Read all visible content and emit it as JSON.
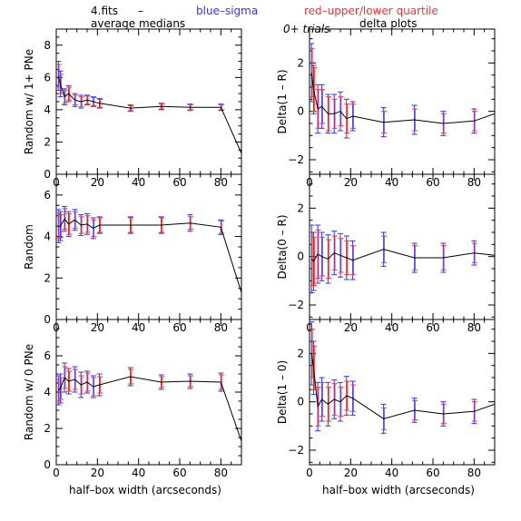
{
  "header": {
    "file_label": "4.fits",
    "dash": "–",
    "blue_label": "blue–sigma",
    "red_label": "red–upper/lower quartile",
    "trials_label": "0+ trials",
    "col_left_title": "average medians",
    "col_right_title": "delta plots",
    "blue_color": "#3333ff",
    "red_color": "#ff3333"
  },
  "chart_data": [
    {
      "type": "line",
      "title": "average medians",
      "ylabel": "Random w/ 1+ PNe",
      "xlabel": "",
      "xlim": [
        0,
        90
      ],
      "ylim": [
        0,
        9
      ],
      "xticks": [
        0,
        20,
        40,
        60,
        80
      ],
      "yticks": [
        0,
        2,
        4,
        6,
        8
      ],
      "x": [
        1,
        2,
        4,
        6,
        9,
        12,
        15,
        18,
        21,
        36,
        51,
        65,
        80,
        90
      ],
      "y": [
        6.1,
        5.6,
        4.8,
        5.0,
        4.6,
        4.5,
        4.6,
        4.5,
        4.4,
        4.1,
        4.2,
        4.15,
        4.15,
        1.3
      ],
      "sigma": [
        0.9,
        0.8,
        0.5,
        0.5,
        0.4,
        0.4,
        0.3,
        0.3,
        0.3,
        0.2,
        0.2,
        0.2,
        0.2,
        null
      ],
      "quartile": [
        0.7,
        0.6,
        0.4,
        0.4,
        0.3,
        0.3,
        0.25,
        0.25,
        0.25,
        0.15,
        0.15,
        0.15,
        0.15,
        null
      ]
    },
    {
      "type": "line",
      "title": "delta plots",
      "ylabel": "Delta(1 – R)",
      "xlabel": "",
      "xlim": [
        0,
        90
      ],
      "ylim": [
        -2.6,
        3.4
      ],
      "xticks": [
        0,
        20,
        40,
        60,
        80
      ],
      "yticks": [
        -2,
        0,
        2
      ],
      "x": [
        1,
        2,
        4,
        6,
        9,
        12,
        15,
        18,
        21,
        36,
        51,
        65,
        80,
        90
      ],
      "y": [
        1.6,
        0.9,
        0.1,
        0.2,
        -0.1,
        -0.1,
        0.0,
        -0.3,
        -0.2,
        -0.45,
        -0.35,
        -0.5,
        -0.4,
        -0.1
      ],
      "sigma": [
        1.2,
        1.0,
        1.0,
        0.9,
        0.8,
        0.8,
        0.8,
        0.8,
        0.6,
        0.6,
        0.6,
        0.5,
        0.5,
        null
      ],
      "quartile": [
        1.0,
        0.9,
        0.8,
        0.7,
        0.7,
        0.6,
        0.6,
        0.6,
        0.5,
        0.45,
        0.45,
        0.4,
        0.4,
        null
      ]
    },
    {
      "type": "line",
      "title": "",
      "ylabel": "Random",
      "xlabel": "",
      "xlim": [
        0,
        90
      ],
      "ylim": [
        0,
        7
      ],
      "xticks": [
        0,
        20,
        40,
        60,
        80
      ],
      "yticks": [
        0,
        2,
        4,
        6
      ],
      "x": [
        1,
        2,
        4,
        6,
        9,
        12,
        15,
        18,
        21,
        36,
        51,
        65,
        80,
        90
      ],
      "y": [
        4.5,
        4.5,
        4.85,
        4.6,
        4.8,
        4.55,
        4.6,
        4.4,
        4.55,
        4.55,
        4.55,
        4.65,
        4.45,
        1.3
      ],
      "sigma": [
        0.8,
        0.7,
        0.6,
        0.6,
        0.5,
        0.5,
        0.5,
        0.5,
        0.4,
        0.4,
        0.4,
        0.4,
        0.35,
        null
      ],
      "quartile": [
        0.6,
        0.55,
        0.5,
        0.5,
        0.4,
        0.4,
        0.4,
        0.4,
        0.35,
        0.35,
        0.35,
        0.3,
        0.3,
        null
      ]
    },
    {
      "type": "line",
      "title": "",
      "ylabel": "Delta(0 – R)",
      "xlabel": "",
      "xlim": [
        0,
        90
      ],
      "ylim": [
        -2.6,
        3.4
      ],
      "xticks": [
        0,
        20,
        40,
        60,
        80
      ],
      "yticks": [
        -2,
        0,
        2
      ],
      "x": [
        1,
        2,
        4,
        6,
        9,
        12,
        15,
        18,
        21,
        36,
        51,
        65,
        80,
        90
      ],
      "y": [
        -0.1,
        -0.2,
        0.1,
        0.0,
        -0.1,
        0.15,
        0.05,
        -0.05,
        -0.15,
        0.3,
        -0.05,
        -0.05,
        0.15,
        0.05
      ],
      "sigma": [
        1.4,
        1.2,
        1.2,
        1.0,
        1.0,
        0.9,
        0.9,
        0.9,
        0.8,
        0.7,
        0.6,
        0.6,
        0.5,
        null
      ],
      "quartile": [
        1.1,
        1.0,
        1.0,
        0.8,
        0.8,
        0.7,
        0.7,
        0.7,
        0.6,
        0.55,
        0.5,
        0.5,
        0.4,
        null
      ]
    },
    {
      "type": "line",
      "title": "",
      "ylabel": "Random w/ 0 PNe",
      "xlabel": "half–box width (arcseconds)",
      "xlim": [
        0,
        90
      ],
      "ylim": [
        0,
        8
      ],
      "xticks": [
        0,
        20,
        40,
        60,
        80
      ],
      "yticks": [
        0,
        2,
        4,
        6
      ],
      "x": [
        1,
        2,
        4,
        6,
        9,
        12,
        15,
        18,
        21,
        36,
        51,
        65,
        80,
        90
      ],
      "y": [
        4.1,
        4.2,
        4.8,
        4.6,
        4.7,
        4.4,
        4.55,
        4.3,
        4.4,
        4.85,
        4.55,
        4.6,
        4.55,
        1.3
      ],
      "sigma": [
        0.8,
        0.8,
        0.8,
        0.7,
        0.7,
        0.7,
        0.6,
        0.6,
        0.6,
        0.5,
        0.4,
        0.4,
        0.5,
        null
      ],
      "quartile": [
        0.6,
        0.6,
        0.6,
        0.55,
        0.55,
        0.5,
        0.5,
        0.5,
        0.45,
        0.4,
        0.3,
        0.3,
        0.4,
        null
      ]
    },
    {
      "type": "line",
      "title": "",
      "ylabel": "Delta(1 – 0)",
      "xlabel": "half–box width (arcseconds)",
      "xlim": [
        0,
        90
      ],
      "ylim": [
        -2.6,
        3.4
      ],
      "xticks": [
        0,
        20,
        40,
        60,
        80
      ],
      "yticks": [
        -2,
        0,
        2
      ],
      "x": [
        1,
        2,
        4,
        6,
        9,
        12,
        15,
        18,
        21,
        36,
        51,
        65,
        80,
        90
      ],
      "y": [
        2.0,
        1.4,
        -0.2,
        0.1,
        -0.1,
        0.1,
        0.0,
        0.25,
        0.15,
        -0.7,
        -0.35,
        -0.5,
        -0.4,
        -0.1
      ],
      "sigma": [
        1.3,
        1.1,
        1.0,
        0.9,
        0.9,
        0.8,
        0.8,
        0.8,
        0.7,
        0.6,
        0.5,
        0.5,
        0.5,
        null
      ],
      "quartile": [
        1.0,
        0.9,
        0.8,
        0.7,
        0.7,
        0.65,
        0.6,
        0.6,
        0.55,
        0.45,
        0.4,
        0.4,
        0.4,
        null
      ]
    }
  ]
}
